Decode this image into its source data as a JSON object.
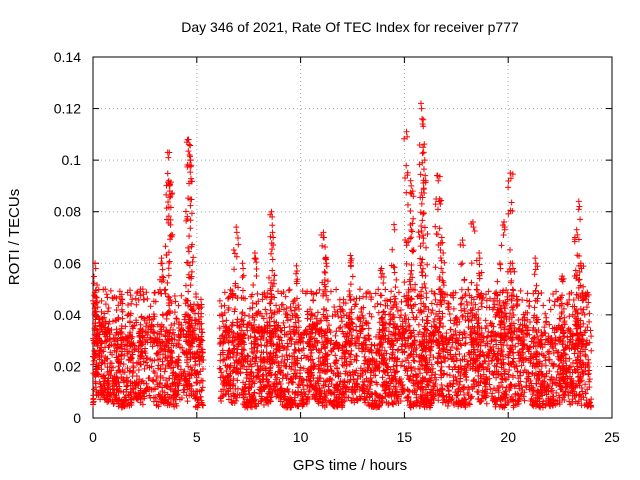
{
  "chart_data": {
    "type": "scatter",
    "title": "Day 346 of 2021, Rate Of TEC Index for receiver p777",
    "xlabel": "GPS time / hours",
    "ylabel": "ROTI / TECUs",
    "xlim": [
      0,
      25
    ],
    "ylim": [
      0,
      0.14
    ],
    "xticks": [
      0,
      5,
      10,
      15,
      20,
      25
    ],
    "yticks": [
      0,
      0.02,
      0.04,
      0.06,
      0.08,
      0.1,
      0.12,
      0.14
    ],
    "xtick_labels": [
      "0",
      "5",
      "10",
      "15",
      "20",
      "25"
    ],
    "ytick_labels": [
      "0",
      "0.02",
      "0.04",
      "0.06",
      "0.08",
      "0.1",
      "0.12",
      "0.14"
    ],
    "grid": true,
    "marker": "+",
    "color": "#ff0000",
    "series": [
      {
        "name": "ROTI",
        "gap_hours": [
          [
            5.3,
            6.1
          ]
        ],
        "x_range": [
          0,
          24
        ],
        "baseline_range": [
          0.005,
          0.035
        ],
        "peaks": [
          [
            0.1,
            0.06
          ],
          [
            0.2,
            0.045
          ],
          [
            1.3,
            0.047
          ],
          [
            2.4,
            0.05
          ],
          [
            3.3,
            0.062
          ],
          [
            3.6,
            0.103
          ],
          [
            3.65,
            0.092
          ],
          [
            3.7,
            0.088
          ],
          [
            4.6,
            0.108
          ],
          [
            4.65,
            0.102
          ],
          [
            4.7,
            0.1
          ],
          [
            5.2,
            0.046
          ],
          [
            6.9,
            0.074
          ],
          [
            7.2,
            0.06
          ],
          [
            7.8,
            0.064
          ],
          [
            8.6,
            0.08
          ],
          [
            8.65,
            0.072
          ],
          [
            9.8,
            0.059
          ],
          [
            11.1,
            0.072
          ],
          [
            11.2,
            0.062
          ],
          [
            12.4,
            0.063
          ],
          [
            13.9,
            0.058
          ],
          [
            14.5,
            0.075
          ],
          [
            15.1,
            0.111
          ],
          [
            15.3,
            0.092
          ],
          [
            15.4,
            0.088
          ],
          [
            15.8,
            0.122
          ],
          [
            15.85,
            0.116
          ],
          [
            15.9,
            0.105
          ],
          [
            16.0,
            0.094
          ],
          [
            16.6,
            0.094
          ],
          [
            16.7,
            0.085
          ],
          [
            16.8,
            0.07
          ],
          [
            17.8,
            0.069
          ],
          [
            18.3,
            0.076
          ],
          [
            18.6,
            0.064
          ],
          [
            19.6,
            0.06
          ],
          [
            19.8,
            0.076
          ],
          [
            20.1,
            0.095
          ],
          [
            20.2,
            0.06
          ],
          [
            21.3,
            0.062
          ],
          [
            22.6,
            0.055
          ],
          [
            23.3,
            0.073
          ],
          [
            23.4,
            0.084
          ],
          [
            23.5,
            0.06
          ]
        ]
      }
    ]
  }
}
